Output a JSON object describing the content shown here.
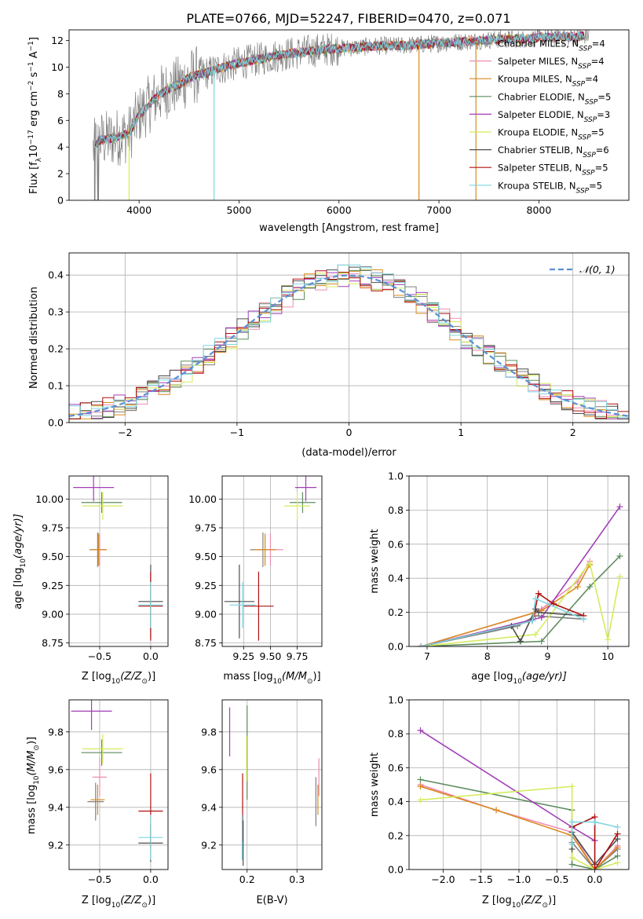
{
  "figure": {
    "title": "PLATE=0766, MJD=52247, FIBERID=0470, z=0.071"
  },
  "legend": {
    "entries": [
      {
        "text": "Chabrier MILES, N",
        "sub": "SSP",
        "tail": "=4",
        "color": "#808080"
      },
      {
        "text": "Salpeter MILES, N",
        "sub": "SSP",
        "tail": "=4",
        "color": "#f08cb4"
      },
      {
        "text": "Kroupa MILES, N",
        "sub": "SSP",
        "tail": "=4",
        "color": "#d98a1e"
      },
      {
        "text": "Chabrier ELODIE, N",
        "sub": "SSP",
        "tail": "=5",
        "color": "#5e8c5e"
      },
      {
        "text": "Salpeter ELODIE, N",
        "sub": "SSP",
        "tail": "=3",
        "color": "#a23fb8"
      },
      {
        "text": "Kroupa ELODIE, N",
        "sub": "SSP",
        "tail": "=5",
        "color": "#d4ec5c"
      },
      {
        "text": "Chabrier STELIB, N",
        "sub": "SSP",
        "tail": "=6",
        "color": "#4d4d4d"
      },
      {
        "text": "Salpeter STELIB, N",
        "sub": "SSP",
        "tail": "=5",
        "color": "#b01010"
      },
      {
        "text": "Kroupa STELIB, N",
        "sub": "SSP",
        "tail": "=5",
        "color": "#7fd6e0"
      }
    ]
  },
  "chart_data": [
    {
      "id": "spectrum",
      "type": "line",
      "xlabel": "wavelength [Angstrom, rest frame]",
      "ylabel_main": "Flux [f",
      "ylabel_sub": "λ",
      "ylabel_rest": "10",
      "ylabel_exp": "−17",
      "ylabel_units": " erg cm",
      "ylabel_units_exp": "−2",
      "ylabel_s": " s",
      "ylabel_s_exp": "−1",
      "ylabel_a": " A",
      "ylabel_a_exp": "−1",
      "ylabel_end": "]",
      "xlim": [
        3300,
        8900
      ],
      "ylim": [
        0,
        12.8
      ],
      "xticks": [
        "4000",
        "5000",
        "6000",
        "7000",
        "8000"
      ],
      "xtick_values": [
        4000,
        5000,
        6000,
        7000,
        8000
      ],
      "yticks": [
        "0",
        "2",
        "4",
        "6",
        "8",
        "10",
        "12"
      ],
      "ytick_values": [
        0,
        2,
        4,
        6,
        8,
        10,
        12
      ],
      "grid": false,
      "continuum": [
        [
          3540,
          3.8
        ],
        [
          3600,
          4.5
        ],
        [
          3700,
          4.6
        ],
        [
          3800,
          4.8
        ],
        [
          3900,
          5.0
        ],
        [
          4000,
          6.4
        ],
        [
          4100,
          7.2
        ],
        [
          4200,
          7.9
        ],
        [
          4300,
          8.4
        ],
        [
          4400,
          8.7
        ],
        [
          4500,
          9.2
        ],
        [
          4600,
          9.5
        ],
        [
          4700,
          9.6
        ],
        [
          4800,
          9.9
        ],
        [
          4900,
          10.1
        ],
        [
          5000,
          10.3
        ],
        [
          5200,
          10.6
        ],
        [
          5400,
          10.9
        ],
        [
          5600,
          11.1
        ],
        [
          5800,
          11.3
        ],
        [
          6000,
          11.4
        ],
        [
          6200,
          11.5
        ],
        [
          6400,
          11.6
        ],
        [
          6600,
          11.6
        ],
        [
          6800,
          11.7
        ],
        [
          7000,
          11.8
        ],
        [
          7200,
          11.9
        ],
        [
          7400,
          12.0
        ],
        [
          7600,
          12.1
        ],
        [
          7800,
          12.1
        ],
        [
          8000,
          12.2
        ],
        [
          8200,
          12.3
        ],
        [
          8400,
          12.3
        ],
        [
          8500,
          12.4
        ]
      ]
    },
    {
      "id": "residuals",
      "type": "step",
      "xlabel": "(data-model)/error",
      "ylabel": "Normed distribution",
      "xlim": [
        -2.5,
        2.5
      ],
      "ylim": [
        0,
        0.46
      ],
      "xticks": [
        "−2",
        "−1",
        "0",
        "1",
        "2"
      ],
      "xtick_values": [
        -2,
        -1,
        0,
        1,
        2
      ],
      "yticks": [
        "0.0",
        "0.1",
        "0.2",
        "0.3",
        "0.4"
      ],
      "ytick_values": [
        0,
        0.1,
        0.2,
        0.3,
        0.4
      ],
      "grid": true,
      "bin_width": 0.1,
      "legend_label": "𝒩(0, 1)",
      "gaussian_color": "#5b8fd6"
    },
    {
      "id": "age-vs-Z",
      "type": "errorbar",
      "xlabel_main": "Z [log",
      "xlabel_sub": "10",
      "xlabel_rest": "(Z/Z",
      "xlabel_sun": "⊙",
      "xlabel_end": ")]",
      "ylabel_main": "age  [log",
      "ylabel_sub": "10",
      "ylabel_rest": "(age/yr)]",
      "xlim": [
        -0.8,
        0.17
      ],
      "ylim": [
        8.72,
        10.2
      ],
      "xticks": [
        "−0.5",
        "0.0"
      ],
      "xtick_values": [
        -0.5,
        0
      ],
      "yticks": [
        "8.75",
        "9.00",
        "9.25",
        "9.50",
        "9.75",
        "10.00"
      ],
      "ytick_values": [
        8.75,
        9.0,
        9.25,
        9.5,
        9.75,
        10.0
      ],
      "points": [
        {
          "x": -0.52,
          "y": 9.56,
          "xe": 0.08,
          "ye": 0.15,
          "color": "#808080"
        },
        {
          "x": -0.5,
          "y": 9.56,
          "xe": 0.07,
          "ye": 0.14,
          "color": "#f08cb4"
        },
        {
          "x": -0.51,
          "y": 9.56,
          "xe": 0.08,
          "ye": 0.14,
          "color": "#d98a1e"
        },
        {
          "x": -0.48,
          "y": 9.97,
          "xe": 0.2,
          "ye": 0.09,
          "color": "#5e8c5e"
        },
        {
          "x": -0.56,
          "y": 10.1,
          "xe": 0.2,
          "ye": 0.12,
          "color": "#a23fb8"
        },
        {
          "x": -0.47,
          "y": 9.94,
          "xe": 0.2,
          "ye": 0.12,
          "color": "#d4ec5c"
        },
        {
          "x": 0.0,
          "y": 9.11,
          "xe": 0.12,
          "ye": 0.32,
          "color": "#4d4d4d"
        },
        {
          "x": 0.0,
          "y": 9.07,
          "xe": 0.12,
          "ye": 0.3,
          "color": "#b01010"
        },
        {
          "x": 0.0,
          "y": 9.08,
          "xe": 0.12,
          "ye": 0.2,
          "color": "#7fd6e0"
        }
      ]
    },
    {
      "id": "age-vs-mass",
      "type": "errorbar",
      "xlabel_main": "mass [log",
      "xlabel_sub": "10",
      "xlabel_rest": "(M/M",
      "xlabel_sun": "⊙",
      "xlabel_end": ")]",
      "xlim": [
        9.05,
        9.98
      ],
      "ylim": [
        8.72,
        10.2
      ],
      "xticks": [
        "9.25",
        "9.50",
        "9.75"
      ],
      "xtick_values": [
        9.25,
        9.5,
        9.75
      ],
      "yticks": [
        "8.75",
        "9.00",
        "9.25",
        "9.50",
        "9.75",
        "10.00"
      ],
      "ytick_values": [
        8.75,
        9.0,
        9.25,
        9.5,
        9.75,
        10.0
      ],
      "points": [
        {
          "x": 9.43,
          "y": 9.56,
          "xe": 0.12,
          "ye": 0.15,
          "color": "#808080"
        },
        {
          "x": 9.5,
          "y": 9.56,
          "xe": 0.12,
          "ye": 0.14,
          "color": "#f08cb4"
        },
        {
          "x": 9.45,
          "y": 9.56,
          "xe": 0.1,
          "ye": 0.14,
          "color": "#d98a1e"
        },
        {
          "x": 9.8,
          "y": 9.97,
          "xe": 0.12,
          "ye": 0.09,
          "color": "#5e8c5e"
        },
        {
          "x": 9.83,
          "y": 10.1,
          "xe": 0.1,
          "ye": 0.12,
          "color": "#a23fb8"
        },
        {
          "x": 9.75,
          "y": 9.94,
          "xe": 0.12,
          "ye": 0.12,
          "color": "#d4ec5c"
        },
        {
          "x": 9.21,
          "y": 9.11,
          "xe": 0.14,
          "ye": 0.32,
          "color": "#4d4d4d"
        },
        {
          "x": 9.39,
          "y": 9.07,
          "xe": 0.14,
          "ye": 0.3,
          "color": "#b01010"
        },
        {
          "x": 9.24,
          "y": 9.08,
          "xe": 0.12,
          "ye": 0.2,
          "color": "#7fd6e0"
        }
      ]
    },
    {
      "id": "weight-vs-age",
      "type": "line",
      "xlabel_main": "age  [log",
      "xlabel_sub": "10",
      "xlabel_rest": "(age/yr)]",
      "ylabel": "mass weight",
      "xlim": [
        6.7,
        10.35
      ],
      "ylim": [
        0,
        1.0
      ],
      "xticks": [
        "7",
        "8",
        "9",
        "10"
      ],
      "xtick_values": [
        7,
        8,
        9,
        10
      ],
      "yticks": [
        "0.0",
        "0.2",
        "0.4",
        "0.6",
        "0.8",
        "1.0"
      ],
      "ytick_values": [
        0,
        0.2,
        0.4,
        0.6,
        0.8,
        1.0
      ],
      "grid": true,
      "series": [
        {
          "color": "#808080",
          "x": [
            6.9,
            8.5,
            8.8,
            9.6
          ],
          "y": [
            0.0,
            0.12,
            0.18,
            0.16
          ]
        },
        {
          "color": "#f08cb4",
          "x": [
            6.9,
            8.8,
            8.9,
            9.5,
            9.7
          ],
          "y": [
            0.0,
            0.2,
            0.22,
            0.38,
            0.5
          ]
        },
        {
          "color": "#d98a1e",
          "x": [
            6.9,
            8.8,
            8.9,
            9.5,
            9.7
          ],
          "y": [
            0.0,
            0.2,
            0.21,
            0.35,
            0.48
          ]
        },
        {
          "color": "#5e8c5e",
          "x": [
            6.9,
            8.9,
            9.7,
            10.2
          ],
          "y": [
            0.0,
            0.03,
            0.35,
            0.53
          ]
        },
        {
          "color": "#a23fb8",
          "x": [
            6.9,
            8.9,
            10.2
          ],
          "y": [
            0.0,
            0.17,
            0.82
          ]
        },
        {
          "color": "#d4ec5c",
          "x": [
            6.9,
            8.8,
            9.7,
            10.0,
            10.2
          ],
          "y": [
            0.0,
            0.07,
            0.49,
            0.04,
            0.41
          ]
        },
        {
          "color": "#4d4d4d",
          "x": [
            6.9,
            8.4,
            8.55,
            8.8,
            8.85,
            9.6
          ],
          "y": [
            0.0,
            0.12,
            0.03,
            0.22,
            0.2,
            0.18
          ]
        },
        {
          "color": "#b01010",
          "x": [
            6.9,
            8.75,
            8.85,
            9.1,
            9.6
          ],
          "y": [
            0.0,
            0.15,
            0.31,
            0.25,
            0.18
          ]
        },
        {
          "color": "#7fd6e0",
          "x": [
            6.9,
            8.75,
            8.8,
            9.6
          ],
          "y": [
            0.0,
            0.15,
            0.28,
            0.16
          ]
        }
      ]
    },
    {
      "id": "mass-vs-Z",
      "type": "errorbar",
      "xlabel_main": "Z [log",
      "xlabel_sub": "10",
      "xlabel_rest": "(Z/Z",
      "xlabel_sun": "⊙",
      "xlabel_end": ")]",
      "ylabel_main": "mass [log",
      "ylabel_sub": "10",
      "ylabel_rest": "(M/M",
      "ylabel_sun": "⊙",
      "ylabel_end": ")]",
      "xlim": [
        -0.8,
        0.17
      ],
      "ylim": [
        9.07,
        9.97
      ],
      "xticks": [
        "−0.5",
        "0.0"
      ],
      "xtick_values": [
        -0.5,
        0
      ],
      "yticks": [
        "9.2",
        "9.4",
        "9.6",
        "9.8"
      ],
      "ytick_values": [
        9.2,
        9.4,
        9.6,
        9.8
      ],
      "points": [
        {
          "x": -0.54,
          "y": 9.43,
          "xe": 0.08,
          "ye": 0.1,
          "color": "#808080"
        },
        {
          "x": -0.5,
          "y": 9.56,
          "xe": 0.07,
          "ye": 0.1,
          "color": "#f08cb4"
        },
        {
          "x": -0.52,
          "y": 9.44,
          "xe": 0.07,
          "ye": 0.08,
          "color": "#d98a1e"
        },
        {
          "x": -0.48,
          "y": 9.69,
          "xe": 0.2,
          "ye": 0.07,
          "color": "#5e8c5e"
        },
        {
          "x": -0.58,
          "y": 9.91,
          "xe": 0.2,
          "ye": 0.1,
          "color": "#a23fb8"
        },
        {
          "x": -0.47,
          "y": 9.71,
          "xe": 0.2,
          "ye": 0.08,
          "color": "#d4ec5c"
        },
        {
          "x": 0.0,
          "y": 9.21,
          "xe": 0.12,
          "ye": 0.1,
          "color": "#4d4d4d"
        },
        {
          "x": 0.0,
          "y": 9.38,
          "xe": 0.12,
          "ye": 0.2,
          "color": "#b01010"
        },
        {
          "x": 0.0,
          "y": 9.24,
          "xe": 0.12,
          "ye": 0.12,
          "color": "#7fd6e0"
        }
      ]
    },
    {
      "id": "mass-vs-ebv",
      "type": "errorbar",
      "xlabel": "E(B-V)",
      "xlim": [
        0.15,
        0.35
      ],
      "ylim": [
        9.07,
        9.97
      ],
      "xticks": [
        "0.2",
        "0.3"
      ],
      "xtick_values": [
        0.2,
        0.3
      ],
      "yticks": [
        "9.2",
        "9.4",
        "9.6",
        "9.8"
      ],
      "ytick_values": [
        9.2,
        9.4,
        9.6,
        9.8
      ],
      "points": [
        {
          "x": 0.338,
          "y": 9.43,
          "xe": 0.0,
          "ye": 0.13,
          "color": "#808080"
        },
        {
          "x": 0.344,
          "y": 9.56,
          "xe": 0.0,
          "ye": 0.1,
          "color": "#f08cb4"
        },
        {
          "x": 0.342,
          "y": 9.44,
          "xe": 0.0,
          "ye": 0.08,
          "color": "#d98a1e"
        },
        {
          "x": 0.2,
          "y": 9.69,
          "xe": 0.0,
          "ye": 0.25,
          "color": "#5e8c5e"
        },
        {
          "x": 0.165,
          "y": 9.8,
          "xe": 0.0,
          "ye": 0.13,
          "color": "#a23fb8"
        },
        {
          "x": 0.199,
          "y": 9.66,
          "xe": 0.0,
          "ye": 0.12,
          "color": "#d4ec5c"
        },
        {
          "x": 0.192,
          "y": 9.21,
          "xe": 0.0,
          "ye": 0.12,
          "color": "#4d4d4d"
        },
        {
          "x": 0.191,
          "y": 9.4,
          "xe": 0.0,
          "ye": 0.18,
          "color": "#b01010"
        },
        {
          "x": 0.19,
          "y": 9.24,
          "xe": 0.0,
          "ye": 0.12,
          "color": "#7fd6e0"
        }
      ]
    },
    {
      "id": "weight-vs-Z",
      "type": "line",
      "xlabel_main": "Z [log",
      "xlabel_sub": "10",
      "xlabel_rest": "(Z/Z",
      "xlabel_sun": "⊙",
      "xlabel_end": ")]",
      "ylabel": "mass weight",
      "xlim": [
        -2.45,
        0.45
      ],
      "ylim": [
        0,
        1.0
      ],
      "xticks": [
        "−2.0",
        "−1.5",
        "−1.0",
        "−0.5",
        "0.0"
      ],
      "xtick_values": [
        -2.0,
        -1.5,
        -1.0,
        -0.5,
        0.0
      ],
      "yticks": [
        "0.0",
        "0.2",
        "0.4",
        "0.6",
        "0.8",
        "1.0"
      ],
      "ytick_values": [
        0,
        0.2,
        0.4,
        0.6,
        0.8,
        1.0
      ],
      "grid": true,
      "series": [
        {
          "color": "#808080",
          "x": [
            -0.3,
            0.0,
            0.3
          ],
          "y": [
            0.16,
            0.0,
            0.12
          ]
        },
        {
          "color": "#f08cb4",
          "x": [
            -2.3,
            -1.3,
            -0.3,
            0.0,
            0.3
          ],
          "y": [
            0.5,
            0.35,
            0.22,
            0.0,
            0.14
          ]
        },
        {
          "color": "#d98a1e",
          "x": [
            -2.3,
            -1.3,
            -0.3,
            0.0,
            0.3
          ],
          "y": [
            0.49,
            0.35,
            0.2,
            0.0,
            0.13
          ]
        },
        {
          "color": "#5e8c5e",
          "x": [
            -2.3,
            -0.3,
            -0.3,
            0.0,
            0.3
          ],
          "y": [
            0.53,
            0.35,
            0.03,
            0.0,
            0.08
          ]
        },
        {
          "color": "#a23fb8",
          "x": [
            -2.3,
            -0.3,
            0.0
          ],
          "y": [
            0.82,
            0.25,
            0.17
          ]
        },
        {
          "color": "#d4ec5c",
          "x": [
            -2.3,
            -0.3,
            -0.3,
            0.0,
            0.3
          ],
          "y": [
            0.41,
            0.49,
            0.07,
            0.0,
            0.04
          ]
        },
        {
          "color": "#4d4d4d",
          "x": [
            -0.3,
            -0.3,
            0.0,
            0.3
          ],
          "y": [
            0.12,
            0.22,
            0.03,
            0.18
          ]
        },
        {
          "color": "#b01010",
          "x": [
            -0.3,
            0.0,
            0.0,
            0.3
          ],
          "y": [
            0.25,
            0.31,
            0.0,
            0.21
          ]
        },
        {
          "color": "#7fd6e0",
          "x": [
            -0.3,
            -0.3,
            0.0,
            0.3
          ],
          "y": [
            0.15,
            0.28,
            0.28,
            0.25
          ]
        }
      ]
    }
  ]
}
